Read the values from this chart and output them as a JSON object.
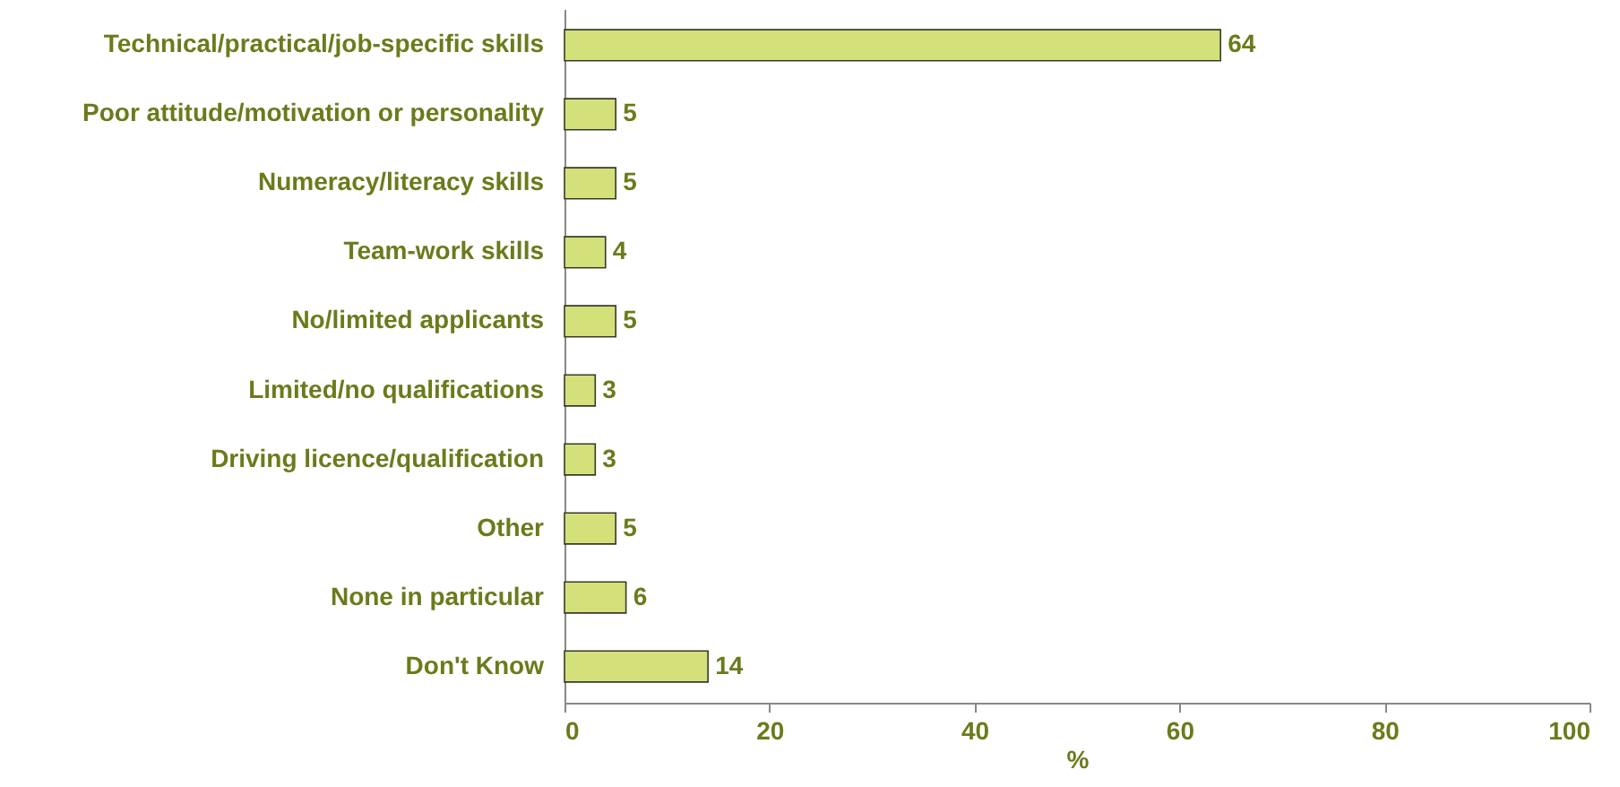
{
  "chart_data": {
    "type": "bar",
    "orientation": "horizontal",
    "categories": [
      "Technical/practical/job-specific skills",
      "Poor attitude/motivation or personality",
      "Numeracy/literacy skills",
      "Team-work skills",
      "No/limited applicants",
      "Limited/no qualifications",
      "Driving licence/qualification",
      "Other",
      "None in particular",
      "Don't Know"
    ],
    "values": [
      64,
      5,
      5,
      4,
      5,
      3,
      3,
      5,
      6,
      14
    ],
    "color": "#d4e07a",
    "xlabel": "%",
    "xlim": [
      0,
      100
    ],
    "xticks": [
      0,
      20,
      40,
      60,
      80,
      100
    ],
    "data_labels": true
  }
}
